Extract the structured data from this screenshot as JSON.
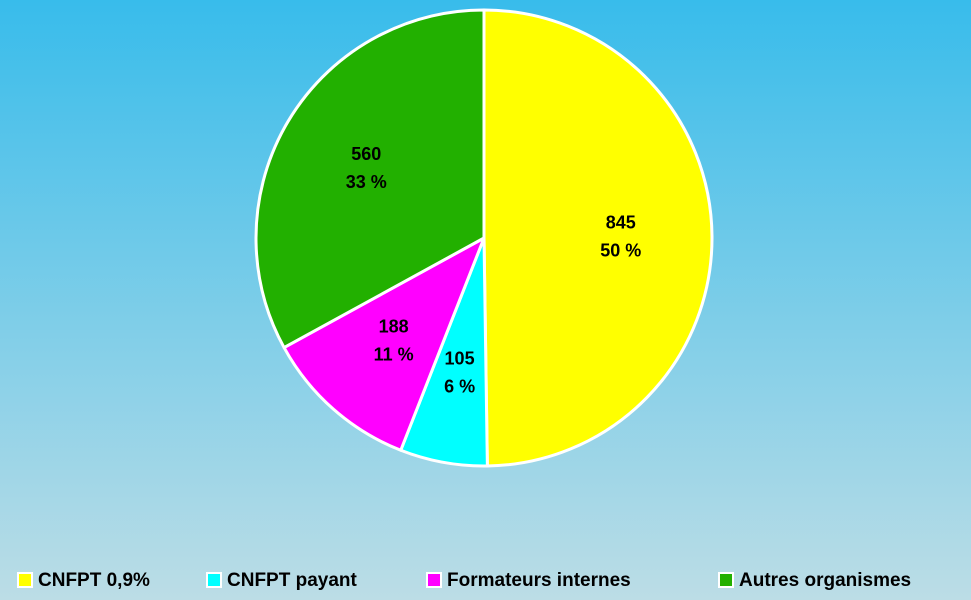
{
  "chart_data": {
    "type": "pie",
    "categories": [
      "CNFPT 0,9%",
      "CNFPT payant",
      "Formateurs internes",
      "Autres organismes"
    ],
    "values": [
      845,
      105,
      188,
      560
    ],
    "percentage_labels": [
      "50 %",
      "6 %",
      "11 %",
      "33 %"
    ],
    "colors": [
      "#ffff00",
      "#00ffff",
      "#ff00ff",
      "#22b000"
    ],
    "legend": "bottom"
  }
}
